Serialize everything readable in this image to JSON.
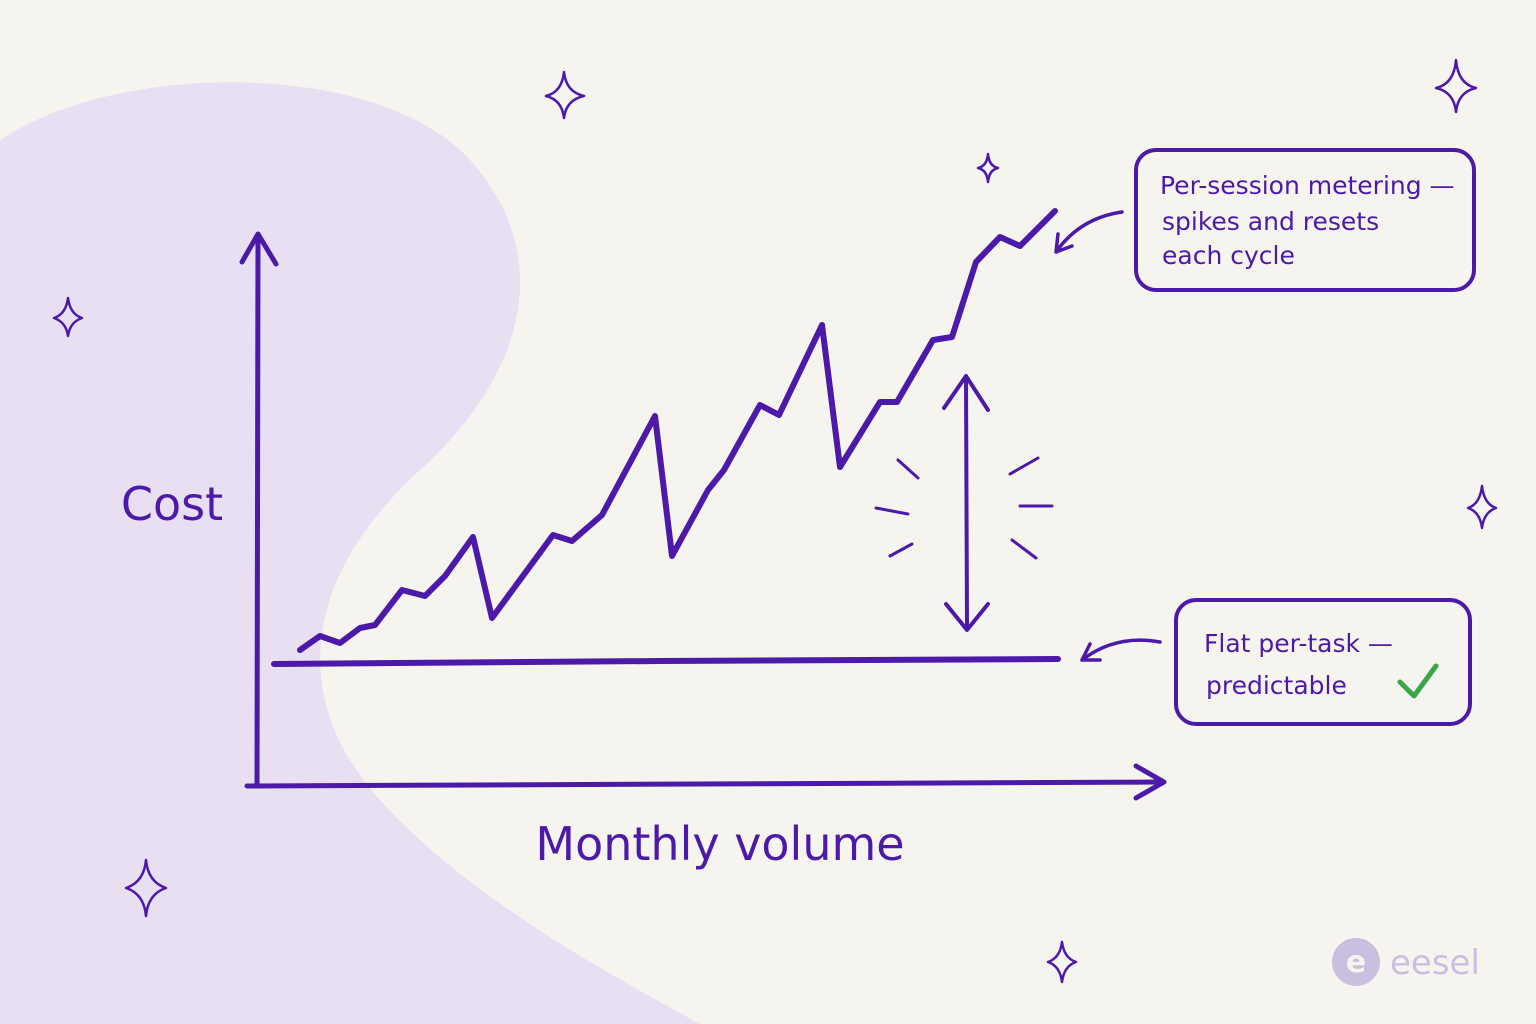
{
  "axes": {
    "y_label": "Cost",
    "x_label": "Monthly volume"
  },
  "annotations": [
    {
      "lines": [
        "Per-session metering —",
        "spikes and resets",
        "each cycle"
      ]
    },
    {
      "lines": [
        "Flat per-task —",
        "predictable"
      ]
    }
  ],
  "logo": "eesel"
}
